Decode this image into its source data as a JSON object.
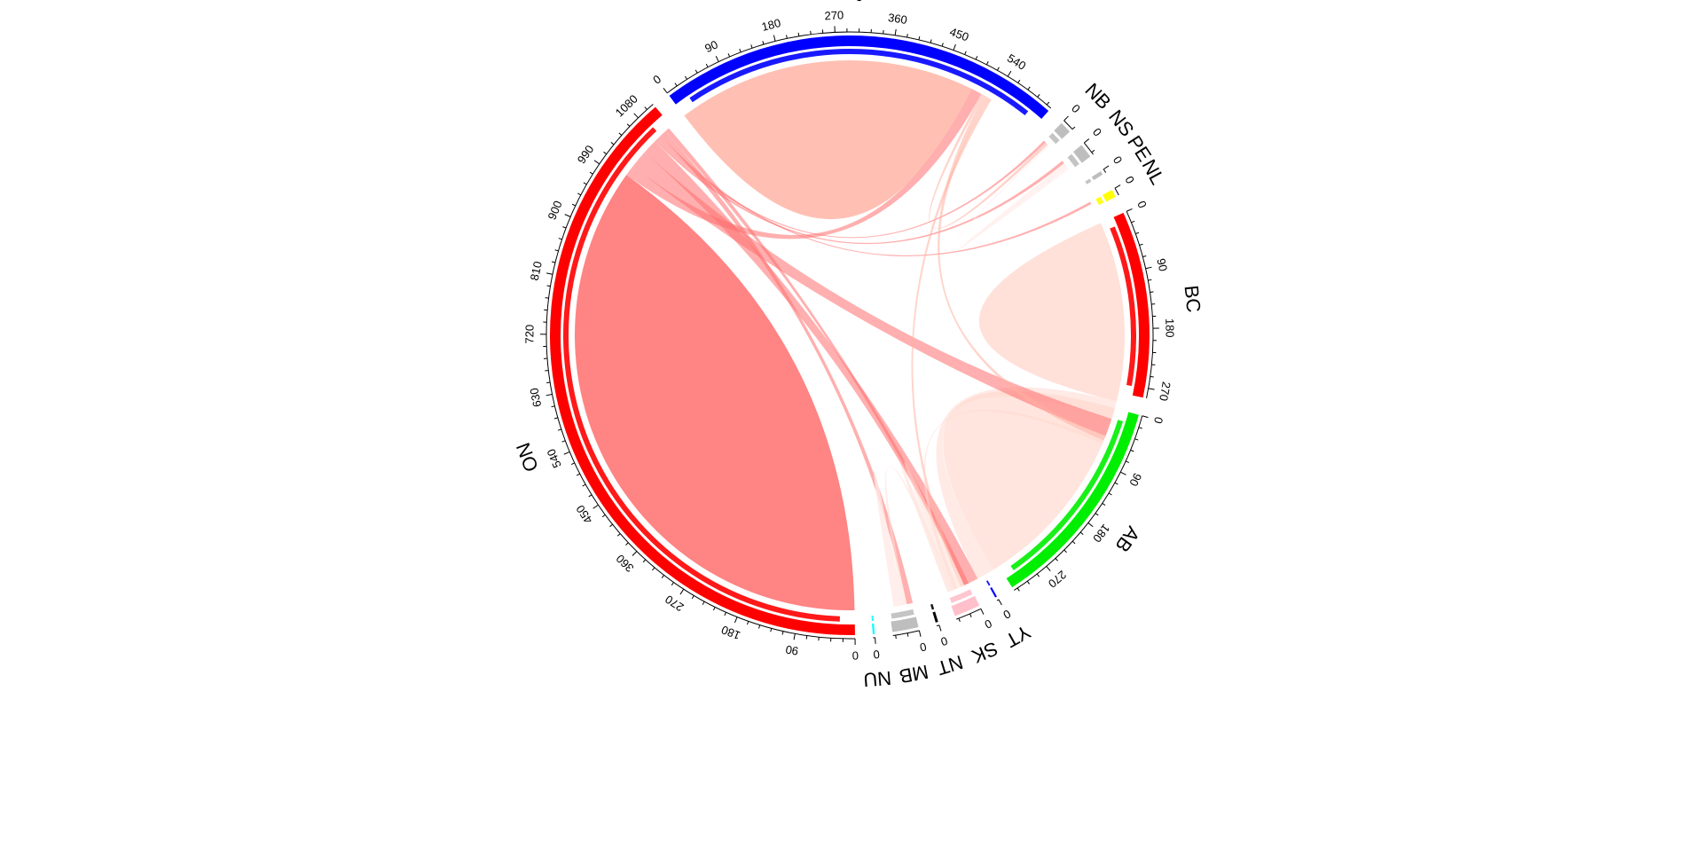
{
  "chart_data": {
    "type": "chord",
    "title": "",
    "sectors": [
      {
        "name": "QC",
        "total": 620,
        "color": "#0000FF",
        "ticks": [
          "0",
          "90",
          "180",
          "270",
          "360",
          "450",
          "540"
        ]
      },
      {
        "name": "NB",
        "total": 18,
        "color": "#BEBEBE",
        "ticks": [
          "0"
        ]
      },
      {
        "name": "NS",
        "total": 22,
        "color": "#BEBEBE",
        "ticks": [
          "0"
        ]
      },
      {
        "name": "PE",
        "total": 6,
        "color": "#BEBEBE",
        "ticks": [
          "0"
        ]
      },
      {
        "name": "NL",
        "total": 12,
        "color": "#FFFF00",
        "ticks": [
          "0"
        ]
      },
      {
        "name": "BC",
        "total": 285,
        "color": "#FF0000",
        "ticks": [
          "0",
          "90",
          "180",
          "270"
        ]
      },
      {
        "name": "AB",
        "total": 330,
        "color": "#00EE00",
        "ticks": [
          "0",
          "90",
          "180",
          "270"
        ]
      },
      {
        "name": "YT",
        "total": 3,
        "color": "#0000FF",
        "ticks": [
          "0"
        ]
      },
      {
        "name": "SK",
        "total": 40,
        "color": "#FFC0CB",
        "ticks": [
          "0"
        ]
      },
      {
        "name": "NT",
        "total": 4,
        "color": "#000000",
        "ticks": [
          "0"
        ]
      },
      {
        "name": "MB",
        "total": 40,
        "color": "#BEBEBE",
        "ticks": [
          "0"
        ]
      },
      {
        "name": "NU",
        "total": 3,
        "color": "#00FFFF",
        "ticks": [
          "0"
        ]
      },
      {
        "name": "ON",
        "total": 1110,
        "color": "#FF0000",
        "ticks": [
          "0",
          "90",
          "180",
          "270",
          "360",
          "450",
          "540",
          "630",
          "720",
          "810",
          "900",
          "990",
          "1080"
        ]
      }
    ],
    "links": [
      {
        "from": "ON",
        "to": "ON",
        "value": 500
      },
      {
        "from": "QC",
        "to": "QC",
        "value": 250
      },
      {
        "from": "ON",
        "to": "QC",
        "value": 18
      },
      {
        "from": "BC",
        "to": "BC",
        "value": 150
      },
      {
        "from": "AB",
        "to": "AB",
        "value": 170
      },
      {
        "from": "BC",
        "to": "AB",
        "value": 30
      },
      {
        "from": "ON",
        "to": "BC",
        "value": 30
      },
      {
        "from": "ON",
        "to": "AB",
        "value": 25
      },
      {
        "from": "ON",
        "to": "NS",
        "value": 5
      },
      {
        "from": "ON",
        "to": "NB",
        "value": 4
      },
      {
        "from": "ON",
        "to": "NL",
        "value": 4
      },
      {
        "from": "ON",
        "to": "MB",
        "value": 10
      },
      {
        "from": "ON",
        "to": "SK",
        "value": 8
      },
      {
        "from": "QC",
        "to": "NB",
        "value": 5
      },
      {
        "from": "QC",
        "to": "BC",
        "value": 8
      },
      {
        "from": "QC",
        "to": "AB",
        "value": 6
      },
      {
        "from": "AB",
        "to": "SK",
        "value": 12
      },
      {
        "from": "BC",
        "to": "SK",
        "value": 6
      },
      {
        "from": "AB",
        "to": "MB",
        "value": 6
      },
      {
        "from": "MB",
        "to": "MB",
        "value": 8
      },
      {
        "from": "SK",
        "to": "SK",
        "value": 6
      },
      {
        "from": "NS",
        "to": "NS",
        "value": 5
      },
      {
        "from": "NB",
        "to": "NS",
        "value": 3
      }
    ]
  }
}
